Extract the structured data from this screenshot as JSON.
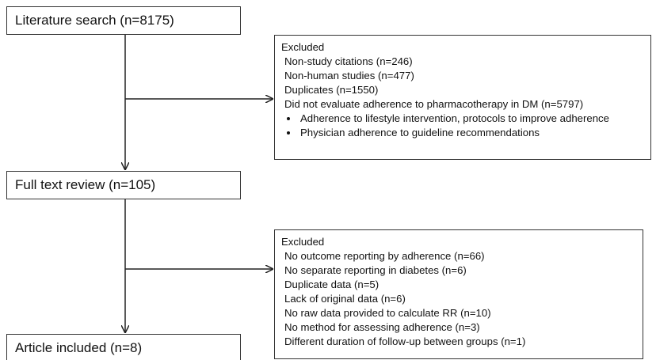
{
  "nodes": [
    {
      "label": "Literature search (n=8175)"
    },
    {
      "label": "Full text review (n=105)"
    },
    {
      "label": "Article included (n=8)"
    }
  ],
  "exclusions": [
    {
      "heading": "Excluded",
      "items": [
        "Non-study citations (n=246)",
        "Non-human studies (n=477)",
        "Duplicates (n=1550)",
        "Did not evaluate adherence to pharmacotherapy in DM (n=5797)"
      ],
      "bullets": [
        "Adherence to lifestyle intervention, protocols to improve adherence",
        "Physician adherence to guideline recommendations"
      ]
    },
    {
      "heading": "Excluded",
      "items": [
        "No outcome reporting by adherence (n=66)",
        "No separate reporting in diabetes (n=6)",
        "Duplicate data (n=5)",
        "Lack of original data (n=6)",
        "No raw data provided to calculate RR (n=10)",
        "No method for assessing adherence (n=3)",
        "Different duration of follow-up between groups (n=1)"
      ]
    }
  ]
}
